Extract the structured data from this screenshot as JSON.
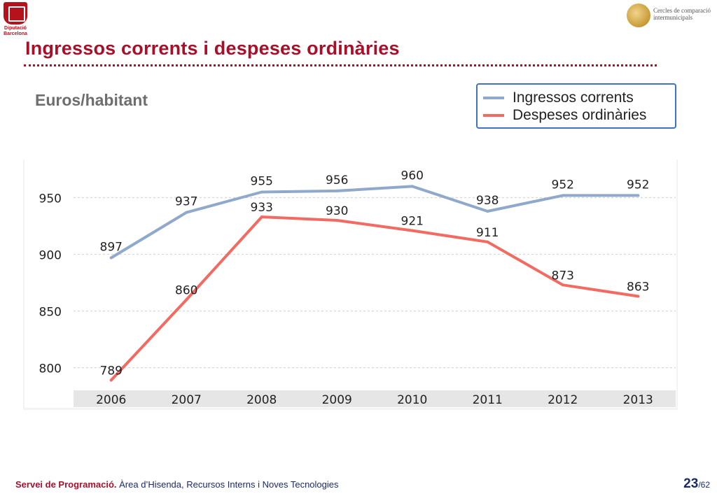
{
  "header": {
    "left_logo_text": "Diputació Barcelona",
    "right_logo_text_1": "Cercles de comparació",
    "right_logo_text_2": "intermunicipals",
    "title": "Ingressos corrents i despeses ordinàries",
    "subtitle": "Euros/habitant"
  },
  "colors": {
    "accent": "#a8102a",
    "series_ingressos": "#8fa9cc",
    "series_despeses": "#f26a61",
    "legend_border": "#3e72c4"
  },
  "footer": {
    "bold": "Servei de Programació.",
    "rest": " Àrea d’Hisenda, Recursos Interns i Noves Tecnologies",
    "page": "23",
    "total": "/62"
  },
  "chart_data": {
    "type": "line",
    "title": "",
    "xlabel": "",
    "ylabel": "",
    "categories": [
      "2006",
      "2007",
      "2008",
      "2009",
      "2010",
      "2011",
      "2012",
      "2013"
    ],
    "series": [
      {
        "name": "Ingressos corrents",
        "values": [
          897,
          937,
          955,
          956,
          960,
          938,
          952,
          952
        ],
        "color": "#8fa9cc"
      },
      {
        "name": "Despeses ordinàries",
        "values": [
          789,
          860,
          933,
          930,
          921,
          911,
          873,
          863
        ],
        "color": "#f26a61"
      }
    ],
    "ylim": [
      780,
      980
    ],
    "yticks": [
      800,
      850,
      900,
      950
    ],
    "grid": true,
    "legend": "top-right",
    "data_labels": true
  }
}
